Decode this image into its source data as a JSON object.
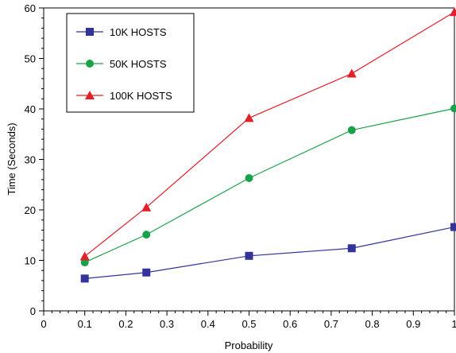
{
  "chart_data": {
    "type": "line",
    "xlabel": "Probability",
    "ylabel": "Time (Seconds)",
    "xlim": [
      0,
      1
    ],
    "ylim": [
      0,
      60
    ],
    "x_ticks": [
      0,
      0.1,
      0.2,
      0.3,
      0.4,
      0.5,
      0.6,
      0.7,
      0.8,
      0.9,
      1
    ],
    "x_tick_labels": [
      "0",
      "0.1",
      "0.2",
      "0.3",
      "0.4",
      "0.5",
      "0.6",
      "0.7",
      "0.8",
      "0.9",
      "1"
    ],
    "y_ticks": [
      0,
      10,
      20,
      30,
      40,
      50,
      60
    ],
    "y_tick_labels": [
      "0",
      "10",
      "20",
      "30",
      "40",
      "50",
      "60"
    ],
    "grid": false,
    "legend_position": "top-left",
    "x": [
      0.1,
      0.25,
      0.5,
      0.75,
      1
    ],
    "series": [
      {
        "name": "10K HOSTS",
        "color": "#333399",
        "marker": "square",
        "values": [
          6.4,
          7.6,
          10.9,
          12.4,
          16.6
        ]
      },
      {
        "name": "50K HOSTS",
        "color": "#1aa24a",
        "marker": "circle",
        "values": [
          9.6,
          15.1,
          26.3,
          35.8,
          40.1
        ]
      },
      {
        "name": "100K HOSTS",
        "color": "#e3202a",
        "marker": "triangle",
        "values": [
          10.8,
          20.5,
          38.2,
          47.0,
          59.2
        ]
      }
    ]
  }
}
